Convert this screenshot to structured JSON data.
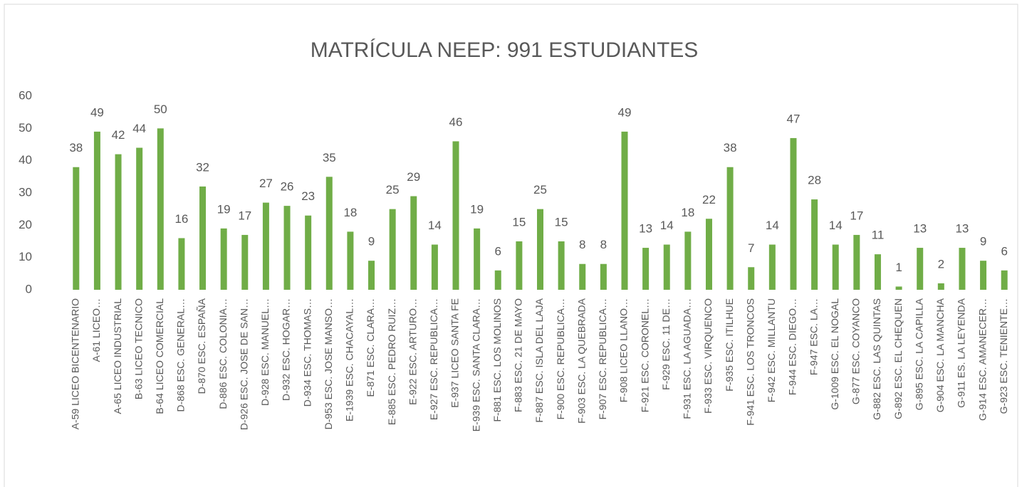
{
  "chart_data": {
    "type": "bar",
    "title": "MATRÍCULA NEEP: 991 ESTUDIANTES",
    "categories": [
      "A-59 LICEO BICENTENARIO",
      "A-61 LICEO…",
      "A-65 LICEO INDUSTRIAL",
      "B-63  LICEO TECNICO",
      "B-64  LICEO COMERCIAL",
      "D-868 ESC. GENERAL…",
      "D-870 ESC. ESPAÑA",
      "D-886  ESC. COLONIA…",
      "D-926  ESC. JOSE DE SAN…",
      "D-928  ESC. MANUEL…",
      "D-932 ESC. HOGAR…",
      "D-934 ESC. THOMAS…",
      "D-953  ESC. JOSE MANSO…",
      "E-1939  ESC. CHACAYAL…",
      "E-871  ESC. CLARA…",
      "E-885  ESC. PEDRO RUIZ…",
      "E-922  ESC. ARTURO…",
      "E-927  ESC. REPUBLICA…",
      "E-937  LICEO SANTA FE",
      "E-939  ESC. SANTA CLARA…",
      "F-881  ESC. LOS MOLINOS",
      "F-883  ESC. 21 DE MAYO",
      "F-887  ESC. ISLA DEL LAJA",
      "F-900  ESC. REPUBLICA…",
      "F-903  ESC. LA QUEBRADA",
      "F-907  ESC. REPUBLICA…",
      "F-908  LICEO  LLANO…",
      "F-921  ESC. CORONEL…",
      "F-929  ESC. 11 DE…",
      "F-931  ESC. LA AGUADA…",
      "F-933  ESC. VIRQUENCO",
      "F-935    ESC.  ITILHUE",
      "F-941  ESC. LOS TRONCOS",
      "F-942  ESC. MILLANTU",
      "F-944  ESC. DIEGO…",
      "F-947  ESC. LA…",
      "G-1009  ESC. EL NOGAL",
      "G-877  ESC. COYANCO",
      "G-882  ESC. LAS QUINTAS",
      "G-892  ESC. EL CHEQUEN",
      "G-895  ESC. LA CAPILLA",
      "G-904  ESC. LA MANCHA",
      "G-911  ES. LA LEYENDA",
      "G-914  ESC. AMANECER…",
      "G-923  ESC. TENIENTE…"
    ],
    "values": [
      38,
      49,
      42,
      44,
      50,
      16,
      32,
      19,
      17,
      27,
      26,
      23,
      35,
      18,
      9,
      25,
      29,
      14,
      46,
      19,
      6,
      15,
      25,
      15,
      8,
      8,
      49,
      13,
      14,
      18,
      22,
      38,
      7,
      14,
      47,
      28,
      14,
      17,
      11,
      1,
      13,
      2,
      13,
      9,
      6
    ],
    "color": "#70ad47",
    "ylim": [
      0,
      60
    ],
    "yticks": [
      0,
      10,
      20,
      30,
      40,
      50,
      60
    ],
    "grid": false
  }
}
